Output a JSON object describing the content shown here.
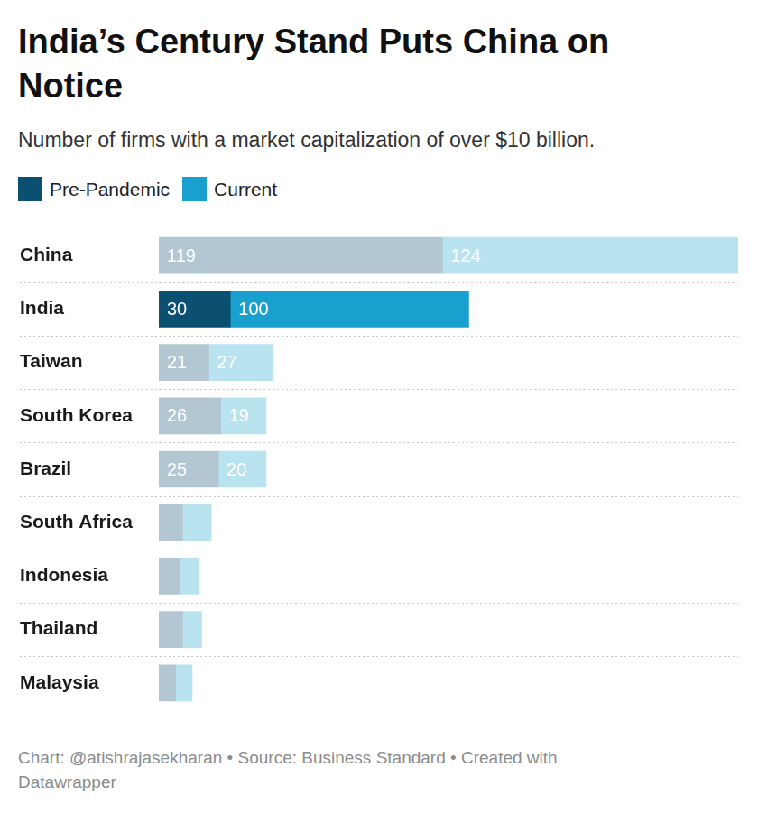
{
  "chart_data": {
    "type": "bar",
    "title": "India’s Century Stand Puts China on Notice",
    "subtitle": "Number of firms with a market capitalization of over $10 billion.",
    "source": "Chart: @atishrajasekharan • Source: Business Standard • Created with Datawrapper",
    "orientation": "horizontal",
    "stacked": true,
    "data_labels": true,
    "tick_labels": "y",
    "legend": "top-left",
    "xlim": [
      0,
      243
    ],
    "categories": [
      "China",
      "India",
      "Taiwan",
      "South Korea",
      "Brazil",
      "South Africa",
      "Indonesia",
      "Thailand",
      "Malaysia"
    ],
    "series": [
      {
        "name": "Pre-Pandemic",
        "color": "#0b4f71",
        "colors": [
          "#b3c7d3",
          "#0b4f71",
          "#b3c7d3",
          "#b3c7d3",
          "#b3c7d3",
          "#b3c7d3",
          "#b3c7d3",
          "#b3c7d3",
          "#b3c7d3"
        ],
        "values": [
          119,
          30,
          21,
          26,
          25,
          10,
          9,
          10,
          7
        ],
        "value_labels": [
          "119",
          "30",
          "21",
          "26",
          "25",
          null,
          null,
          null,
          null
        ]
      },
      {
        "name": "Current",
        "color": "#1aa0cf",
        "colors": [
          "#bae3f0",
          "#1aa0cf",
          "#bae3f0",
          "#bae3f0",
          "#bae3f0",
          "#bae3f0",
          "#bae3f0",
          "#bae3f0",
          "#bae3f0"
        ],
        "values": [
          124,
          100,
          27,
          19,
          20,
          12,
          8,
          8,
          7
        ],
        "value_labels": [
          "124",
          "100",
          "27",
          "19",
          "20",
          null,
          null,
          null,
          null
        ]
      }
    ]
  }
}
